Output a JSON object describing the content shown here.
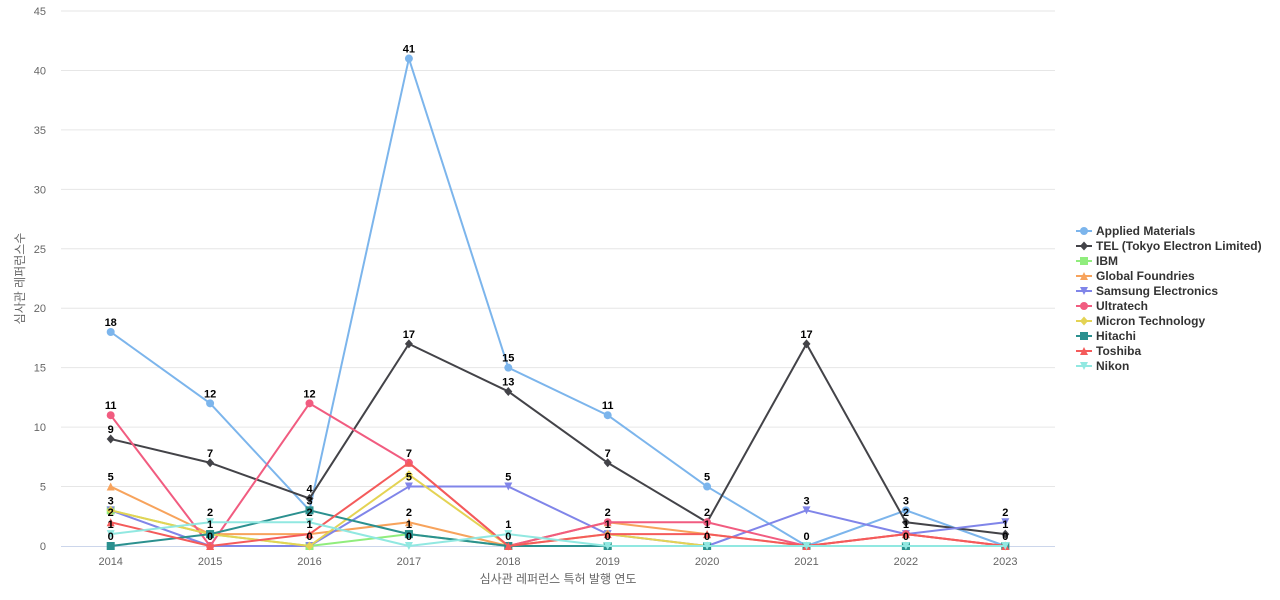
{
  "chart_data": {
    "type": "line",
    "title": "",
    "xlabel": "심사관 레퍼런스 특허 발행 연도",
    "ylabel": "심사관 레퍼런스수",
    "x": [
      "2014",
      "2015",
      "2016",
      "2017",
      "2018",
      "2019",
      "2020",
      "2021",
      "2022",
      "2023"
    ],
    "ylim": [
      0,
      45
    ],
    "yticks": [
      0,
      5,
      10,
      15,
      20,
      25,
      30,
      35,
      40,
      45
    ],
    "grid": true,
    "legend_position": "right",
    "series": [
      {
        "name": "Applied Materials",
        "color": "#7cb5ec",
        "marker": "circle",
        "values": [
          18,
          12,
          3,
          41,
          15,
          11,
          5,
          0,
          3,
          0
        ]
      },
      {
        "name": "TEL (Tokyo Electron Limited)",
        "color": "#434348",
        "marker": "diamond",
        "values": [
          9,
          7,
          4,
          17,
          13,
          7,
          2,
          17,
          2,
          1
        ]
      },
      {
        "name": "IBM",
        "color": "#90ed7d",
        "marker": "square",
        "values": [
          3,
          1,
          0,
          1,
          0,
          0,
          0,
          0,
          0,
          0
        ]
      },
      {
        "name": "Global Foundries",
        "color": "#f7a35c",
        "marker": "triangle",
        "values": [
          5,
          1,
          1,
          2,
          0,
          2,
          1,
          0,
          1,
          0
        ]
      },
      {
        "name": "Samsung Electronics",
        "color": "#8085e9",
        "marker": "triangle-down",
        "values": [
          3,
          0,
          0,
          5,
          5,
          1,
          0,
          3,
          1,
          2
        ]
      },
      {
        "name": "Ultratech",
        "color": "#f15c80",
        "marker": "circle",
        "values": [
          11,
          0,
          12,
          7,
          0,
          2,
          2,
          0,
          1,
          0
        ]
      },
      {
        "name": "Micron Technology",
        "color": "#e4d354",
        "marker": "diamond",
        "values": [
          3,
          1,
          0,
          6,
          0,
          1,
          0,
          0,
          0,
          0
        ]
      },
      {
        "name": "Hitachi",
        "color": "#2b908f",
        "marker": "square",
        "values": [
          0,
          1,
          3,
          1,
          0,
          0,
          0,
          0,
          0,
          0
        ]
      },
      {
        "name": "Toshiba",
        "color": "#f45b5b",
        "marker": "triangle",
        "values": [
          2,
          0,
          1,
          7,
          0,
          1,
          1,
          0,
          1,
          0
        ]
      },
      {
        "name": "Nikon",
        "color": "#91e8e1",
        "marker": "triangle-down",
        "values": [
          1,
          2,
          2,
          0,
          1,
          0,
          0,
          0,
          0,
          0
        ]
      }
    ],
    "data_labels": [
      {
        "x": "2014",
        "text": "18",
        "value": 18
      },
      {
        "x": "2014",
        "text": "11",
        "value": 11
      },
      {
        "x": "2014",
        "text": "9",
        "value": 9
      },
      {
        "x": "2014",
        "text": "5",
        "value": 5
      },
      {
        "x": "2014",
        "text": "3",
        "value": 3
      },
      {
        "x": "2014",
        "text": "2",
        "value": 2
      },
      {
        "x": "2014",
        "text": "1",
        "value": 1
      },
      {
        "x": "2014",
        "text": "0",
        "value": 0
      },
      {
        "x": "2015",
        "text": "12",
        "value": 12
      },
      {
        "x": "2015",
        "text": "7",
        "value": 7
      },
      {
        "x": "2015",
        "text": "2",
        "value": 2
      },
      {
        "x": "2015",
        "text": "1",
        "value": 1
      },
      {
        "x": "2015",
        "text": "0",
        "value": 0
      },
      {
        "x": "2016",
        "text": "12",
        "value": 12
      },
      {
        "x": "2016",
        "text": "4",
        "value": 4
      },
      {
        "x": "2016",
        "text": "3",
        "value": 3
      },
      {
        "x": "2016",
        "text": "2",
        "value": 2
      },
      {
        "x": "2016",
        "text": "1",
        "value": 1
      },
      {
        "x": "2016",
        "text": "0",
        "value": 0
      },
      {
        "x": "2017",
        "text": "41",
        "value": 41
      },
      {
        "x": "2017",
        "text": "17",
        "value": 17
      },
      {
        "x": "2017",
        "text": "7",
        "value": 7
      },
      {
        "x": "2017",
        "text": "5",
        "value": 5
      },
      {
        "x": "2017",
        "text": "2",
        "value": 2
      },
      {
        "x": "2017",
        "text": "1",
        "value": 1
      },
      {
        "x": "2017",
        "text": "0",
        "value": 0
      },
      {
        "x": "2018",
        "text": "15",
        "value": 15
      },
      {
        "x": "2018",
        "text": "13",
        "value": 13
      },
      {
        "x": "2018",
        "text": "5",
        "value": 5
      },
      {
        "x": "2018",
        "text": "1",
        "value": 1
      },
      {
        "x": "2018",
        "text": "0",
        "value": 0
      },
      {
        "x": "2019",
        "text": "11",
        "value": 11
      },
      {
        "x": "2019",
        "text": "7",
        "value": 7
      },
      {
        "x": "2019",
        "text": "2",
        "value": 2
      },
      {
        "x": "2019",
        "text": "1",
        "value": 1
      },
      {
        "x": "2019",
        "text": "0",
        "value": 0
      },
      {
        "x": "2020",
        "text": "5",
        "value": 5
      },
      {
        "x": "2020",
        "text": "2",
        "value": 2
      },
      {
        "x": "2020",
        "text": "1",
        "value": 1
      },
      {
        "x": "2020",
        "text": "0",
        "value": 0
      },
      {
        "x": "2021",
        "text": "17",
        "value": 17
      },
      {
        "x": "2021",
        "text": "3",
        "value": 3
      },
      {
        "x": "2021",
        "text": "0",
        "value": 0
      },
      {
        "x": "2022",
        "text": "3",
        "value": 3
      },
      {
        "x": "2022",
        "text": "2",
        "value": 2
      },
      {
        "x": "2022",
        "text": "1",
        "value": 1
      },
      {
        "x": "2022",
        "text": "0",
        "value": 0
      },
      {
        "x": "2023",
        "text": "2",
        "value": 2
      },
      {
        "x": "2023",
        "text": "1",
        "value": 1
      },
      {
        "x": "2023",
        "text": "0",
        "value": 0
      }
    ]
  }
}
